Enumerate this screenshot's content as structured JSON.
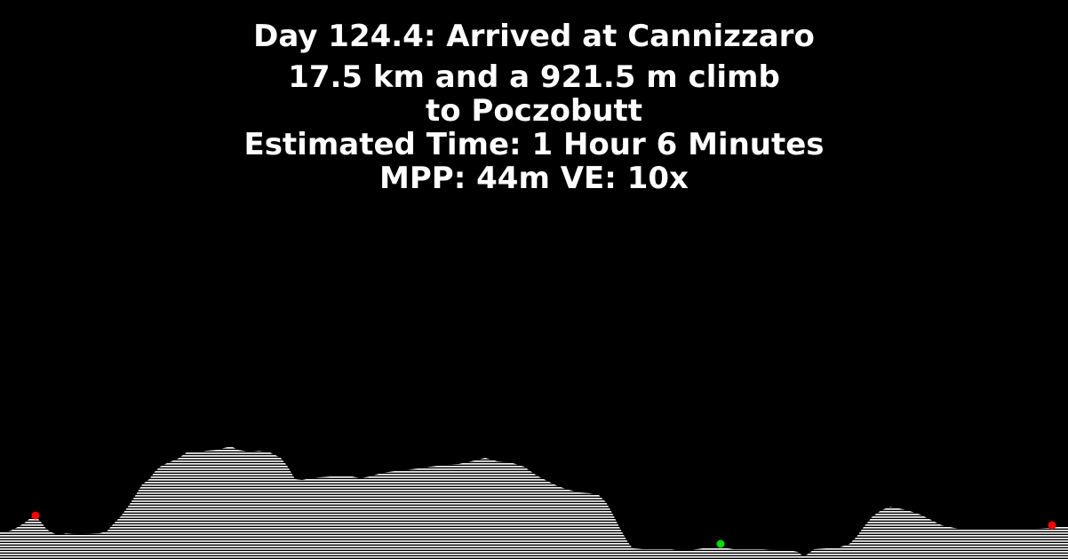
{
  "header": {
    "title": "Day 124.4: Arrived at Cannizzaro",
    "distance_line": "17.5 km and a 921.5 m climb",
    "destination_line": "to Poczobutt",
    "estimate_line": "Estimated Time: 1 Hour 6 Minutes",
    "params_line": "MPP: 44m VE: 10x"
  },
  "colors": {
    "background": "#000000",
    "text": "#ffffff",
    "terrain": "#ffffff",
    "marker_red": "#ff0000",
    "marker_green": "#00dd00"
  }
}
